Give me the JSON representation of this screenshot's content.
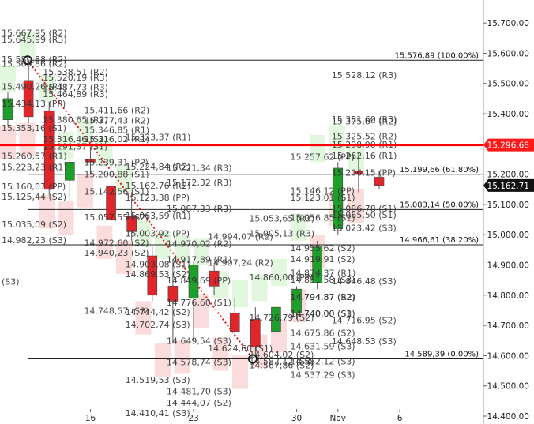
{
  "chart_data": {
    "type": "candlestick",
    "y_axis": {
      "min": 14400,
      "max": 15750,
      "ticks": [
        "15.700,00",
        "15.600,00",
        "15.500,00",
        "15.400,00",
        "15.300,00",
        "15.200,00",
        "15.100,00",
        "15.000,00",
        "14.900,00",
        "14.800,00",
        "14.700,00",
        "14.600,00",
        "14.500,00",
        "14.400,00"
      ],
      "tick_values": [
        15700,
        15600,
        15500,
        15400,
        15300,
        15200,
        15100,
        15000,
        14900,
        14800,
        14700,
        14600,
        14500,
        14400
      ],
      "position": "right"
    },
    "x_axis": {
      "ticks": [
        {
          "label": "16",
          "index": 4
        },
        {
          "label": "23",
          "index": 9
        },
        {
          "label": "30",
          "index": 14
        },
        {
          "label": "Nov",
          "index": 16
        },
        {
          "label": "6",
          "index": 19
        }
      ]
    },
    "candles": [
      {
        "i": 0,
        "open": 15380,
        "high": 15470,
        "low": 15360,
        "close": 15450,
        "dir": "up"
      },
      {
        "i": 1,
        "open": 15510,
        "high": 15580,
        "low": 15370,
        "close": 15390,
        "dir": "down"
      },
      {
        "i": 2,
        "open": 15410,
        "high": 15440,
        "low": 15130,
        "close": 15150,
        "dir": "down"
      },
      {
        "i": 3,
        "open": 15180,
        "high": 15250,
        "low": 15110,
        "close": 15240,
        "dir": "up"
      },
      {
        "i": 4,
        "open": 15250,
        "high": 15290,
        "low": 15200,
        "close": 15240,
        "dir": "down"
      },
      {
        "i": 5,
        "open": 15160,
        "high": 15230,
        "low": 15030,
        "close": 15050,
        "dir": "down"
      },
      {
        "i": 6,
        "open": 15060,
        "high": 15140,
        "low": 14980,
        "close": 15010,
        "dir": "down"
      },
      {
        "i": 7,
        "open": 14930,
        "high": 14960,
        "low": 14780,
        "close": 14800,
        "dir": "down"
      },
      {
        "i": 8,
        "open": 14830,
        "high": 14920,
        "low": 14640,
        "close": 14780,
        "dir": "down"
      },
      {
        "i": 9,
        "open": 14790,
        "high": 14910,
        "low": 14650,
        "close": 14900,
        "dir": "up"
      },
      {
        "i": 10,
        "open": 14880,
        "high": 14900,
        "low": 14800,
        "close": 14830,
        "dir": "down"
      },
      {
        "i": 11,
        "open": 14740,
        "high": 14790,
        "low": 14660,
        "close": 14680,
        "dir": "down"
      },
      {
        "i": 12,
        "open": 14720,
        "high": 14760,
        "low": 14600,
        "close": 14630,
        "dir": "down"
      },
      {
        "i": 13,
        "open": 14680,
        "high": 14780,
        "low": 14670,
        "close": 14760,
        "dir": "up"
      },
      {
        "i": 14,
        "open": 14740,
        "high": 14830,
        "low": 14720,
        "close": 14820,
        "dir": "up"
      },
      {
        "i": 15,
        "open": 14840,
        "high": 14980,
        "low": 14820,
        "close": 14960,
        "dir": "up"
      },
      {
        "i": 16,
        "open": 15020,
        "high": 15240,
        "low": 15000,
        "close": 15220,
        "dir": "up"
      },
      {
        "i": 17,
        "open": 15210,
        "high": 15270,
        "low": 15140,
        "close": 15200,
        "dir": "down"
      },
      {
        "i": 18,
        "open": 15190,
        "high": 15210,
        "low": 15150,
        "close": 15163,
        "dir": "down"
      }
    ],
    "fibonacci_levels": [
      {
        "value": 15576.89,
        "label": "15.576,89 (100.00%)"
      },
      {
        "value": 15199.66,
        "label": "15.199,66 (61.80%)"
      },
      {
        "value": 15083.14,
        "label": "15.083,14 (50.00%)"
      },
      {
        "value": 14966.61,
        "label": "14.966,61 (38.20%)"
      },
      {
        "value": 14589.39,
        "label": "14.589,39 (0.00%)"
      }
    ],
    "horizontal_line": {
      "value": 15296.68,
      "label": "15.296,68",
      "color": "#ff0000"
    },
    "last_price": {
      "value": 15162.71,
      "label": "15.162,71"
    },
    "trendline": {
      "from": {
        "i": 1,
        "value": 15576.89
      },
      "to": {
        "i": 13,
        "value": 14589.39
      },
      "color": "#e8151b"
    },
    "pivot_labels": [
      {
        "i": 0,
        "value": 15667.95,
        "text": "15.667,95 (R2)"
      },
      {
        "i": 0,
        "value": 15645.99,
        "text": "15.645,99 (R3)"
      },
      {
        "i": 0,
        "value": 15580.88,
        "text": "15.580,88 (R2)"
      },
      {
        "i": 0,
        "value": 15565.86,
        "text": "15.565,86 (R2)"
      },
      {
        "i": 1,
        "value": 15538.51,
        "text": "15.538,51 (R2)"
      },
      {
        "i": 1,
        "value": 15520.19,
        "text": "15.520,19 (R3)"
      },
      {
        "i": 0,
        "value": 15490.26,
        "text": "15.490,26 (R1)"
      },
      {
        "i": 1,
        "value": 15487.73,
        "text": "15.487,73 (R3)"
      },
      {
        "i": 1,
        "value": 15464.89,
        "text": "15.464,89 (R3)"
      },
      {
        "i": 0,
        "value": 15434.13,
        "text": "15.434,13 (PP)"
      },
      {
        "i": 2,
        "value": 15411.66,
        "text": "15.411,66 (R2)"
      },
      {
        "i": 1,
        "value": 15380.65,
        "text": "15.380,65 (R2)"
      },
      {
        "i": 2,
        "value": 15377.43,
        "text": "15.377,43 (R2)"
      },
      {
        "i": 0,
        "value": 15353.16,
        "text": "15.353,16 (S1)"
      },
      {
        "i": 2,
        "value": 15346.85,
        "text": "15.346,85 (R1)"
      },
      {
        "i": 3,
        "value": 15323.37,
        "text": "15.323,37 (R1)"
      },
      {
        "i": 1,
        "value": 15316.46,
        "text": "15.316,46 (S2)"
      },
      {
        "i": 2,
        "value": 15316.02,
        "text": "15.316,02 (R1)"
      },
      {
        "i": 1,
        "value": 15291.37,
        "text": "15.291,37 (S1)"
      },
      {
        "i": 0,
        "value": 15260.57,
        "text": "15.260,57 (R1)"
      },
      {
        "i": 2,
        "value": 15239.31,
        "text": "15.239,31 (PP)"
      },
      {
        "i": 0,
        "value": 15223.23,
        "text": "15.223,23 (R1)"
      },
      {
        "i": 3,
        "value": 15224.84,
        "text": "15.224,84 (R2)"
      },
      {
        "i": 4,
        "value": 15221.34,
        "text": "15.221,34 (R3)"
      },
      {
        "i": 2,
        "value": 15200.88,
        "text": "15.200,88 (S1)"
      },
      {
        "i": 4,
        "value": 15172.32,
        "text": "15.172,32 (R3)"
      },
      {
        "i": 3,
        "value": 15162.76,
        "text": "15.162,76 (R2)"
      },
      {
        "i": 0,
        "value": 15160.07,
        "text": "15.160,07 (PP)"
      },
      {
        "i": 2,
        "value": 15142.56,
        "text": "15.142,56 (S1)"
      },
      {
        "i": 3,
        "value": 15123.38,
        "text": "15.123,38 (PP)"
      },
      {
        "i": 0,
        "value": 15125.44,
        "text": "15.125,44 (S2)"
      },
      {
        "i": 4,
        "value": 15087.33,
        "text": "15.087,33 (R3)"
      },
      {
        "i": 2,
        "value": 15057.55,
        "text": "15.057,55 (S2)"
      },
      {
        "i": 0,
        "value": 15035.09,
        "text": "15.035,09 (S2)"
      },
      {
        "i": 3,
        "value": 15063.59,
        "text": "15.063,59 (R1)"
      },
      {
        "i": 6,
        "value": 15053.65,
        "text": "15.053,65 (R3)"
      },
      {
        "i": 6,
        "value": 15005.13,
        "text": "15.005,13 (R3)"
      },
      {
        "i": 3,
        "value": 15003.92,
        "text": "15.003,92 (PP)"
      },
      {
        "i": 5,
        "value": 14994.07,
        "text": "14.994,07 (R2)"
      },
      {
        "i": 0,
        "value": 14982.23,
        "text": "14.982,23 (S3)"
      },
      {
        "i": 2,
        "value": 14972.6,
        "text": "14.972,60 (S2)"
      },
      {
        "i": 4,
        "value": 14970.02,
        "text": "14.970,02 (R2)"
      },
      {
        "i": 2,
        "value": 14940.23,
        "text": "14.940,23 (S2)"
      },
      {
        "i": 4,
        "value": 14917.89,
        "text": "14.917,89 (R1)"
      },
      {
        "i": 3,
        "value": 14903.08,
        "text": "14.903,08 (S1)"
      },
      {
        "i": 5,
        "value": 14907.24,
        "text": "14.907,24 (R2)"
      },
      {
        "i": 0,
        "value": 14845.0,
        "text": "(S3)"
      },
      {
        "i": 3,
        "value": 14869.53,
        "text": "14.869,53 (S2)"
      },
      {
        "i": 4,
        "value": 14849.69,
        "text": "14.849,69 (PP)"
      },
      {
        "i": 7,
        "value": 14874.37,
        "text": "14.874,37 (R1)"
      },
      {
        "i": 6,
        "value": 14860.0,
        "text": "14.860,00 (PP)"
      },
      {
        "i": 2,
        "value": 14748.57,
        "text": "14.748,57 (S3)"
      },
      {
        "i": 3,
        "value": 14744.42,
        "text": "14.744,42 (S2)"
      },
      {
        "i": 4,
        "value": 14776.6,
        "text": "14.776,60 (S1)"
      },
      {
        "i": 7,
        "value": 14794.87,
        "text": "14.794,87 (R2)"
      },
      {
        "i": 3,
        "value": 14702.74,
        "text": "14.702,74 (S3)"
      },
      {
        "i": 6,
        "value": 14726.79,
        "text": "14.726,79 (S2)"
      },
      {
        "i": 7,
        "value": 14740.0,
        "text": "14.740,00 (S1)"
      },
      {
        "i": 8,
        "value": 14716.95,
        "text": "14.716,95 (S2)"
      },
      {
        "i": 4,
        "value": 14649.54,
        "text": "14.649,54 (S3)"
      },
      {
        "i": 7,
        "value": 14675.86,
        "text": "14.675,86 (S2)"
      },
      {
        "i": 8,
        "value": 14648.53,
        "text": "14.648,53 (S3)"
      },
      {
        "i": 5,
        "value": 14624.6,
        "text": "14.624,60 (S1)"
      },
      {
        "i": 6,
        "value": 14604.02,
        "text": "14.604,02 (S2)"
      },
      {
        "i": 4,
        "value": 14578.74,
        "text": "14.578,74 (S3)"
      },
      {
        "i": 6,
        "value": 14582.12,
        "text": "14.582,12 (S3)"
      },
      {
        "i": 6,
        "value": 14567.86,
        "text": "14.567,86 (S2)"
      },
      {
        "i": 7,
        "value": 14537.29,
        "text": "14.537,29 (S3)"
      },
      {
        "i": 3,
        "value": 14519.53,
        "text": "14.519,53 (S3)"
      },
      {
        "i": 4,
        "value": 14481.7,
        "text": "14.481,70 (S3)"
      },
      {
        "i": 4,
        "value": 14444.07,
        "text": "14.444,07 (S2)"
      },
      {
        "i": 3,
        "value": 14410.41,
        "text": "14.410,41 (S3)"
      },
      {
        "i": 8,
        "value": 15528.12,
        "text": "15.528,12 (R3)"
      },
      {
        "i": 8,
        "value": 15375.64,
        "text": "15.375,64 (R2)"
      },
      {
        "i": 8,
        "value": 15381.6,
        "text": "15.381,60 (R3)"
      },
      {
        "i": 8,
        "value": 15325.52,
        "text": "15.325,52 (R2)"
      },
      {
        "i": 8,
        "value": 15298.9,
        "text": "15.298,90 (R1)"
      },
      {
        "i": 7,
        "value": 15257.62,
        "text": "15.257,62 (PP)"
      },
      {
        "i": 8,
        "value": 15262.16,
        "text": "15.262,16 (R1)"
      },
      {
        "i": 8,
        "value": 15206.15,
        "text": "15.206,15 (PP)"
      },
      {
        "i": 7,
        "value": 15146.12,
        "text": "15.146,12 (PP)"
      },
      {
        "i": 7,
        "value": 15123.01,
        "text": "15.123,01 (S1)"
      },
      {
        "i": 8,
        "value": 15086.78,
        "text": "15.086,78 (S1)"
      },
      {
        "i": 7,
        "value": 15056.85,
        "text": "15.056,85 (S2)"
      },
      {
        "i": 8,
        "value": 15065.5,
        "text": "15.065,50 (S1)"
      },
      {
        "i": 8,
        "value": 15023.42,
        "text": "15.023,42 (S3)"
      },
      {
        "i": 7,
        "value": 14955.62,
        "text": "14.955,62 (S2)"
      },
      {
        "i": 7,
        "value": 14919.91,
        "text": "14.919,91 (S2)"
      },
      {
        "i": 7,
        "value": 14851.58,
        "text": "14.851,58 (S3)"
      },
      {
        "i": 8,
        "value": 14846.48,
        "text": "14.846,48 (S3)"
      },
      {
        "i": 7,
        "value": 14794.87,
        "text": "14.794,87 (S2)"
      },
      {
        "i": 7,
        "value": 14740.0,
        "text": "14.740,00 (S3)"
      },
      {
        "i": 7,
        "value": 14631.59,
        "text": "14.631,59 (S3)"
      },
      {
        "i": 7,
        "value": 14582.12,
        "text": "14.582,12 (S3)"
      }
    ],
    "colors": {
      "up": "#1e9e2a",
      "down": "#e0252b",
      "up_zone": "#d9f5d6",
      "down_zone": "#fad3d3",
      "axis_bg": "#ffffff",
      "price_tag": "#ff1a1a",
      "last_tag": "#111111"
    }
  }
}
